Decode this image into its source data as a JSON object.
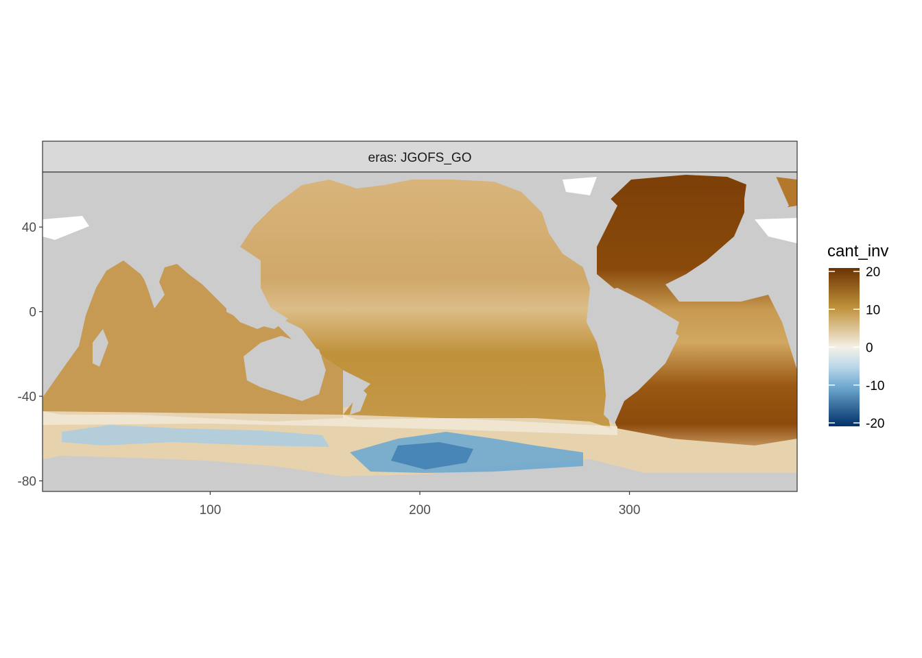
{
  "facet": {
    "label": "eras: JGOFS_GO"
  },
  "x_axis": {
    "ticks": [
      {
        "value": 100,
        "label": "100"
      },
      {
        "value": 200,
        "label": "200"
      },
      {
        "value": 300,
        "label": "300"
      }
    ],
    "range": [
      20,
      380
    ]
  },
  "y_axis": {
    "ticks": [
      {
        "value": 40,
        "label": "40"
      },
      {
        "value": 0,
        "label": "0"
      },
      {
        "value": -40,
        "label": "-40"
      },
      {
        "value": -80,
        "label": "-80"
      }
    ],
    "range": [
      -85,
      66
    ]
  },
  "legend": {
    "title": "cant_inv",
    "labels": [
      "20",
      "10",
      "0",
      "-10",
      "-20"
    ],
    "values": [
      20,
      10,
      0,
      -10,
      -20
    ],
    "colors": {
      "high": "#6b3303",
      "mid_high": "#c0913a",
      "zero": "#f5f0e6",
      "mid_low": "#8fc0dd",
      "low": "#00306a"
    }
  },
  "colors": {
    "panel_background": "#cccccc",
    "strip_background": "#d9d9d9",
    "land_mask": "#cccccc",
    "missing_data": "#ffffff"
  },
  "chart_data": {
    "type": "heatmap",
    "variable": "cant_inv",
    "color_range": [
      -20,
      20
    ],
    "x_range": [
      20,
      380
    ],
    "y_range": [
      -85,
      66
    ],
    "regions": [
      {
        "region": "North Atlantic",
        "approx_value": 20
      },
      {
        "region": "South Atlantic 30S-50S",
        "approx_value": 17
      },
      {
        "region": "Tropical Atlantic",
        "approx_value": 10
      },
      {
        "region": "North Pacific",
        "approx_value": 8
      },
      {
        "region": "Tropical Pacific",
        "approx_value": 6
      },
      {
        "region": "South Pacific 20S-50S",
        "approx_value": 10
      },
      {
        "region": "Indian Ocean",
        "approx_value": 10
      },
      {
        "region": "Southern Ocean 55S-60S",
        "approx_value": 2
      },
      {
        "region": "Ross/Amundsen Sea 60S-75S",
        "approx_value": -7
      },
      {
        "region": "Indian Sector 60S-70S",
        "approx_value": -4
      }
    ]
  }
}
